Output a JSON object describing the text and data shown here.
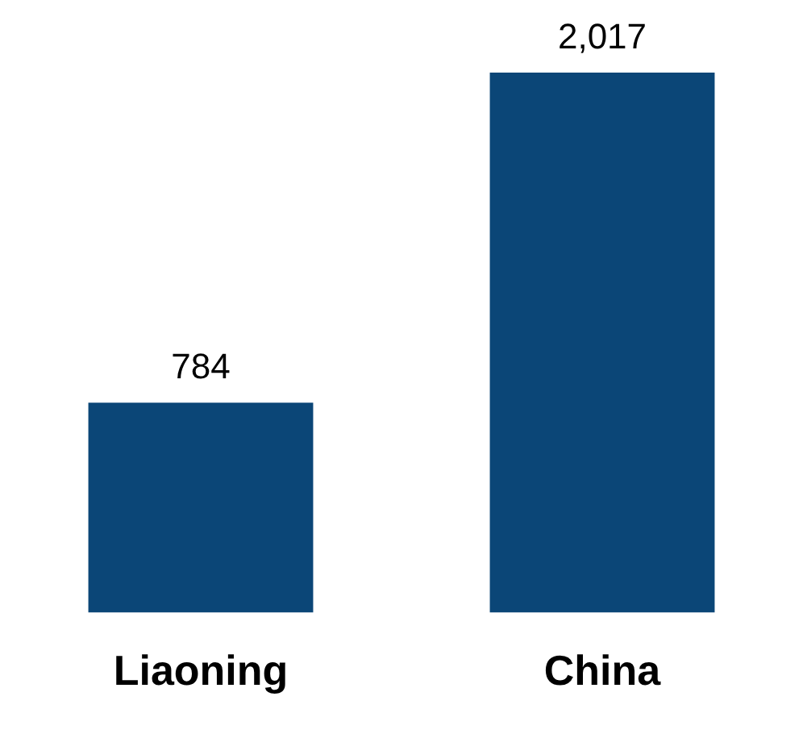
{
  "chart_data": {
    "type": "bar",
    "categories": [
      "Liaoning",
      "China"
    ],
    "values": [
      784,
      2017
    ],
    "color": "#0b4677",
    "value_labels": [
      "784",
      "2,017"
    ]
  }
}
